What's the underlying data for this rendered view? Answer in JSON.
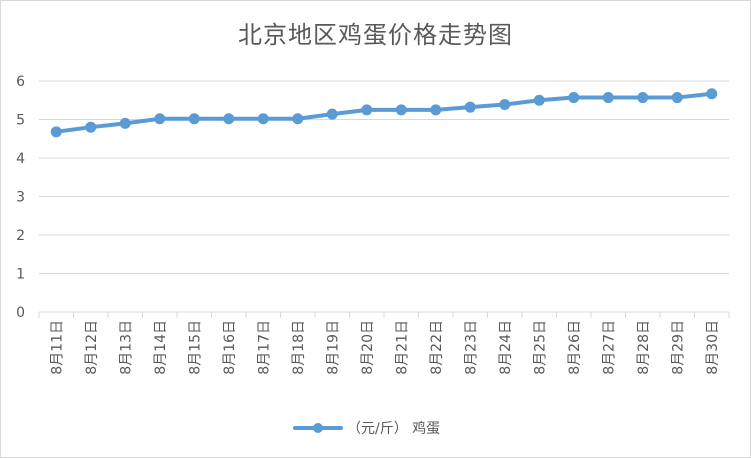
{
  "chart_data": {
    "type": "line",
    "title": "北京地区鸡蛋价格走势图",
    "categories": [
      "8月11日",
      "8月12日",
      "8月13日",
      "8月14日",
      "8月15日",
      "8月16日",
      "8月17日",
      "8月18日",
      "8月19日",
      "8月20日",
      "8月21日",
      "8月22日",
      "8月23日",
      "8月24日",
      "8月25日",
      "8月26日",
      "8月27日",
      "8月28日",
      "8月29日",
      "8月30日"
    ],
    "series": [
      {
        "name": "（元/斤） 鸡蛋",
        "values": [
          4.68,
          4.8,
          4.9,
          5.02,
          5.02,
          5.02,
          5.02,
          5.02,
          5.14,
          5.25,
          5.25,
          5.25,
          5.32,
          5.39,
          5.5,
          5.57,
          5.57,
          5.57,
          5.57,
          5.67
        ]
      }
    ],
    "ylim": [
      0,
      6
    ],
    "yticks": [
      0,
      1,
      2,
      3,
      4,
      5,
      6
    ],
    "grid": true,
    "legend": "bottom",
    "line_color": "#5b9bd5",
    "grid_color": "#d9d9d9"
  }
}
